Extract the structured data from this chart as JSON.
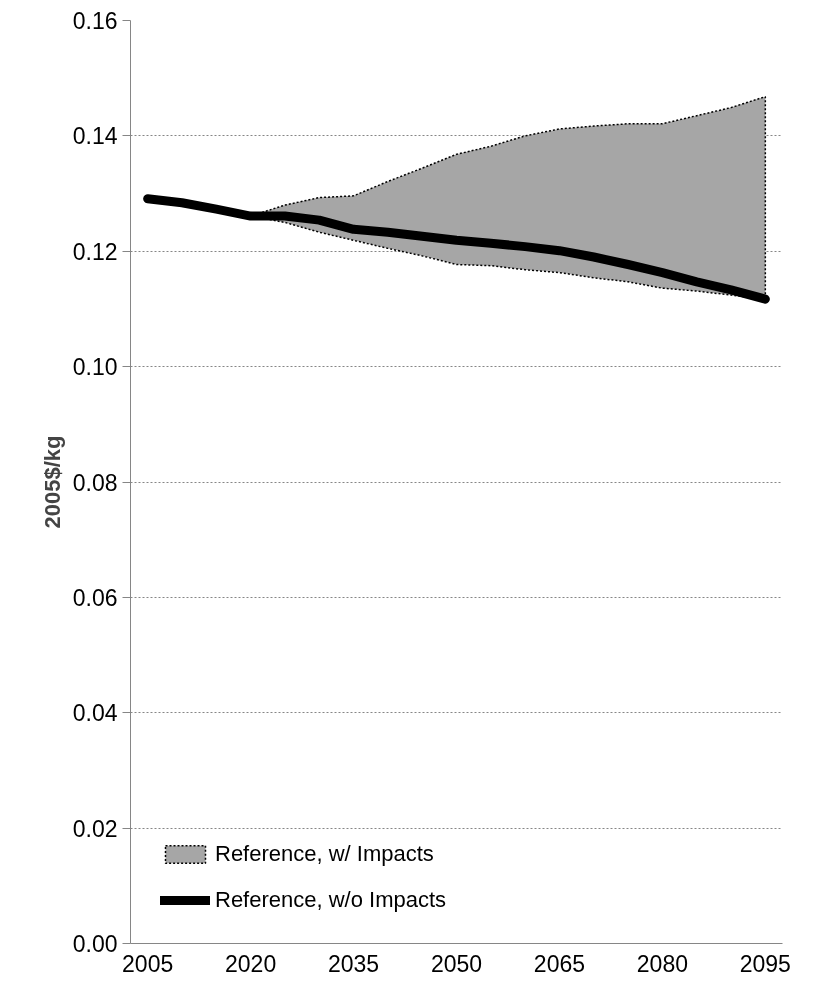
{
  "chart_data": {
    "type": "line",
    "ylabel": "2005$/kg",
    "categories": [
      "2005",
      null,
      null,
      "2020",
      null,
      null,
      "2035",
      null,
      null,
      "2050",
      null,
      null,
      "2065",
      null,
      null,
      "2080",
      null,
      null,
      "2095"
    ],
    "ylim": [
      0,
      0.16
    ],
    "yticks": [
      {
        "value": 0,
        "label": "0.00"
      },
      {
        "value": 0.02,
        "label": "0.02"
      },
      {
        "value": 0.04,
        "label": "0.04"
      },
      {
        "value": 0.06,
        "label": "0.06"
      },
      {
        "value": 0.08,
        "label": "0.08"
      },
      {
        "value": 0.1,
        "label": "0.10"
      },
      {
        "value": 0.12,
        "label": "0.12"
      },
      {
        "value": 0.14,
        "label": "0.14"
      },
      {
        "value": 0.16,
        "label": "0.16"
      }
    ],
    "grid": "y",
    "legend": "bottom left",
    "series": [
      {
        "name": "Reference, w/ Impacts",
        "type": "area",
        "color": "#a6a6a6",
        "values": [
          null,
          null,
          null,
          null,
          null,
          null,
          null,
          null,
          null,
          null,
          null,
          null,
          null,
          null,
          null,
          null,
          null,
          null,
          null
        ],
        "upper": [
          null,
          null,
          null,
          0.1261,
          0.128,
          0.1293,
          0.1296,
          0.1321,
          0.1344,
          0.1368,
          0.1382,
          0.14,
          0.1412,
          0.1417,
          0.1421,
          0.1421,
          0.1435,
          0.1449,
          0.1468
        ],
        "lower": [
          null,
          null,
          null,
          0.1261,
          0.125,
          0.1233,
          0.1219,
          0.1205,
          0.1192,
          0.1177,
          0.1175,
          0.1168,
          0.1163,
          0.1154,
          0.1147,
          0.1136,
          0.1131,
          0.1124,
          0.1117
        ]
      },
      {
        "name": "Reference, w/o Impacts",
        "type": "line",
        "color": "#000000",
        "values": [
          0.1291,
          0.1284,
          0.1273,
          0.1261,
          0.1261,
          0.1254,
          0.1238,
          0.1233,
          0.1226,
          0.1219,
          0.1214,
          0.1208,
          0.1201,
          0.119,
          0.1177,
          0.1163,
          0.1147,
          0.1133,
          0.1117
        ]
      }
    ]
  }
}
